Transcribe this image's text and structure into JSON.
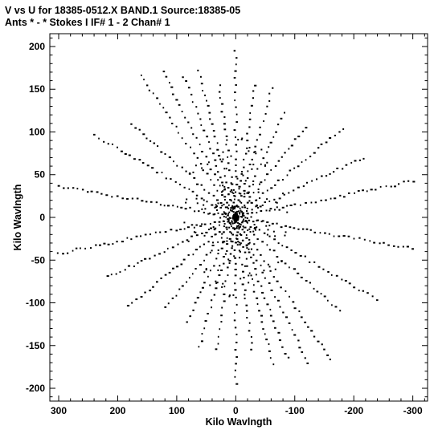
{
  "header": {
    "line1": "V vs U for 18385-0512.X BAND.1   Source:18385-05",
    "line2": "Ants * - *     Stokes I  IF# 1 - 2  Chan# 1"
  },
  "chart_data": {
    "type": "scatter",
    "xlabel": "Kilo Wavlngth",
    "ylabel": "Kilo Wavlngth",
    "xlim": [
      315,
      -325
    ],
    "ylim": [
      -215,
      215
    ],
    "x_ticks": [
      300,
      200,
      100,
      0,
      -100,
      -200,
      -300
    ],
    "y_ticks": [
      200,
      150,
      100,
      50,
      0,
      -50,
      -100,
      -150,
      -200
    ],
    "grid": false,
    "colors": {
      "points": "#000000",
      "frame": "#000000"
    },
    "tracks": [
      {
        "angle_deg": 7,
        "rmax": 305
      },
      {
        "angle_deg": 22,
        "rmax": 260
      },
      {
        "angle_deg": 32,
        "rmax": 215
      },
      {
        "angle_deg": 46,
        "rmax": 235
      },
      {
        "angle_deg": 54,
        "rmax": 210
      },
      {
        "angle_deg": 62,
        "rmax": 190
      },
      {
        "angle_deg": 70,
        "rmax": 185
      },
      {
        "angle_deg": 80,
        "rmax": 160
      },
      {
        "angle_deg": 90,
        "rmax": 200
      },
      {
        "angle_deg": 102,
        "rmax": 160
      },
      {
        "angle_deg": 112,
        "rmax": 170
      },
      {
        "angle_deg": 124,
        "rmax": 150
      },
      {
        "angle_deg": 138,
        "rmax": 165
      },
      {
        "angle_deg": 150,
        "rmax": 210
      },
      {
        "angle_deg": 162,
        "rmax": 230
      },
      {
        "angle_deg": 172,
        "rmax": 310
      }
    ]
  }
}
